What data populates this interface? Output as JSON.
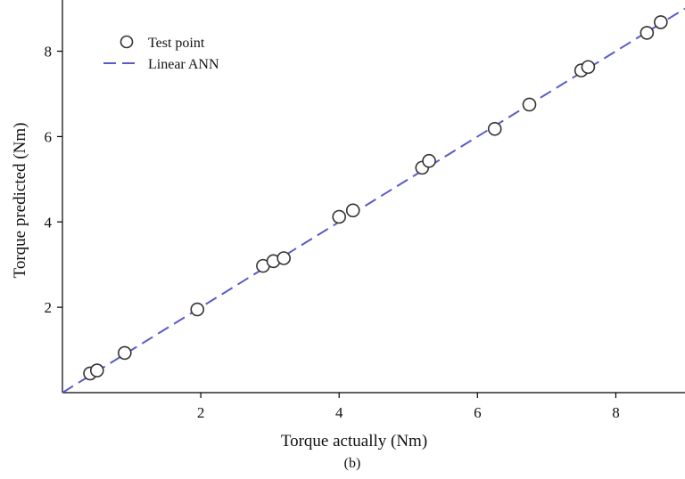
{
  "chart_data": {
    "type": "scatter",
    "title": "",
    "xlabel": "Torque actually (Nm)",
    "ylabel": "Torque predicted (Nm)",
    "xlim": [
      0,
      9
    ],
    "ylim": [
      0,
      9.2
    ],
    "xticks": [
      2,
      4,
      6,
      8
    ],
    "yticks": [
      2,
      4,
      6,
      8
    ],
    "grid": false,
    "legend_position": "top-left",
    "caption": "(b)",
    "series": [
      {
        "name": "Test point",
        "kind": "scatter",
        "marker": "open-circle",
        "points": [
          [
            0.4,
            0.45
          ],
          [
            0.5,
            0.52
          ],
          [
            0.9,
            0.93
          ],
          [
            1.95,
            1.95
          ],
          [
            2.9,
            2.97
          ],
          [
            3.05,
            3.08
          ],
          [
            3.2,
            3.15
          ],
          [
            4.0,
            4.12
          ],
          [
            4.2,
            4.27
          ],
          [
            5.2,
            5.27
          ],
          [
            5.3,
            5.43
          ],
          [
            6.25,
            6.18
          ],
          [
            6.75,
            6.75
          ],
          [
            7.5,
            7.55
          ],
          [
            7.6,
            7.63
          ],
          [
            8.45,
            8.43
          ],
          [
            8.65,
            8.68
          ]
        ]
      },
      {
        "name": "Linear ANN",
        "kind": "line",
        "style": "dashed",
        "color": "#5B5BC8",
        "points": [
          [
            0,
            0
          ],
          [
            9,
            9
          ]
        ]
      }
    ]
  }
}
